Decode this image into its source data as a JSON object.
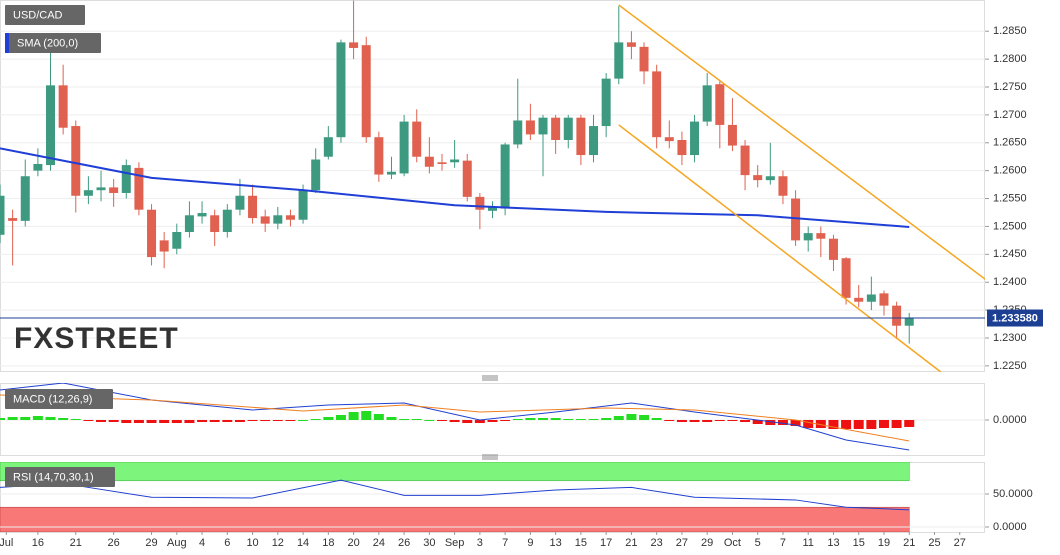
{
  "chart_data": [
    {
      "type": "candlestick",
      "title": "USD/CAD",
      "watermark": "FXSTREET",
      "xlim": [
        0,
        78
      ],
      "xticks": [
        {
          "value": 0.5,
          "label": "Jul"
        },
        {
          "value": 3,
          "label": "16"
        },
        {
          "value": 6,
          "label": "21"
        },
        {
          "value": 9,
          "label": "26"
        },
        {
          "value": 12,
          "label": "29"
        },
        {
          "value": 14,
          "label": "Aug"
        },
        {
          "value": 16,
          "label": "4"
        },
        {
          "value": 18,
          "label": "6"
        },
        {
          "value": 20,
          "label": "10"
        },
        {
          "value": 22,
          "label": "12"
        },
        {
          "value": 24,
          "label": "14"
        },
        {
          "value": 26,
          "label": "18"
        },
        {
          "value": 28,
          "label": "20"
        },
        {
          "value": 30,
          "label": "24"
        },
        {
          "value": 32,
          "label": "26"
        },
        {
          "value": 34,
          "label": "30"
        },
        {
          "value": 36,
          "label": "Sep"
        },
        {
          "value": 38,
          "label": "3"
        },
        {
          "value": 40,
          "label": "7"
        },
        {
          "value": 42,
          "label": "9"
        },
        {
          "value": 44,
          "label": "13"
        },
        {
          "value": 46,
          "label": "15"
        },
        {
          "value": 48,
          "label": "17"
        },
        {
          "value": 50,
          "label": "21"
        },
        {
          "value": 52,
          "label": "23"
        },
        {
          "value": 54,
          "label": "27"
        },
        {
          "value": 56,
          "label": "29"
        },
        {
          "value": 58,
          "label": "Oct"
        },
        {
          "value": 60,
          "label": "5"
        },
        {
          "value": 62,
          "label": "7"
        },
        {
          "value": 64,
          "label": "11"
        },
        {
          "value": 66,
          "label": "13"
        },
        {
          "value": 68,
          "label": "15"
        },
        {
          "value": 70,
          "label": "19"
        },
        {
          "value": 72,
          "label": "21"
        },
        {
          "value": 74,
          "label": "25"
        },
        {
          "value": 76,
          "label": "27"
        }
      ],
      "ylim": [
        1.2239,
        1.2906
      ],
      "yticks": [
        {
          "value": 1.225,
          "label": "1.2250"
        },
        {
          "value": 1.23,
          "label": "1.2300"
        },
        {
          "value": 1.235,
          "label": "1.2350"
        },
        {
          "value": 1.24,
          "label": "1.2400"
        },
        {
          "value": 1.245,
          "label": "1.2450"
        },
        {
          "value": 1.25,
          "label": "1.2500"
        },
        {
          "value": 1.255,
          "label": "1.2550"
        },
        {
          "value": 1.26,
          "label": "1.2600"
        },
        {
          "value": 1.265,
          "label": "1.2650"
        },
        {
          "value": 1.27,
          "label": "1.2700"
        },
        {
          "value": 1.275,
          "label": "1.2750"
        },
        {
          "value": 1.28,
          "label": "1.2800"
        },
        {
          "value": 1.285,
          "label": "1.2850"
        }
      ],
      "grid": true,
      "up_color": "#3d9a80",
      "down_color": "#e0614f",
      "open": [
        1.2485,
        1.2515,
        1.251,
        1.26,
        1.261,
        1.2753,
        1.268,
        1.2555,
        1.2565,
        1.257,
        1.256,
        1.2605,
        1.253,
        1.2475,
        1.246,
        1.249,
        1.2518,
        1.252,
        1.249,
        1.253,
        1.2555,
        1.2518,
        1.2505,
        1.252,
        1.2512,
        1.2565,
        1.2625,
        1.266,
        1.283,
        1.2825,
        1.266,
        1.2593,
        1.2595,
        1.2688,
        1.2625,
        1.2615,
        1.2615,
        1.2618,
        1.2553,
        1.2528,
        1.2532,
        1.2647,
        1.269,
        1.2665,
        1.2695,
        1.2655,
        1.2695,
        1.2628,
        1.268,
        1.2765,
        1.283,
        1.2822,
        1.2778,
        1.266,
        1.2655,
        1.2628,
        1.2688,
        1.2755,
        1.2682,
        1.2645,
        1.2592,
        1.2583,
        1.259,
        1.255,
        1.2475,
        1.2488,
        1.2478,
        1.2443,
        1.2372,
        1.2365,
        1.238,
        1.2358,
        1.2322
      ],
      "high": [
        1.2575,
        1.253,
        1.262,
        1.264,
        1.282,
        1.279,
        1.269,
        1.259,
        1.26,
        1.2585,
        1.262,
        1.2615,
        1.254,
        1.249,
        1.2505,
        1.2545,
        1.2545,
        1.253,
        1.254,
        1.2585,
        1.2575,
        1.253,
        1.2535,
        1.253,
        1.2575,
        1.264,
        1.268,
        1.2835,
        1.2905,
        1.284,
        1.267,
        1.2625,
        1.27,
        1.271,
        1.266,
        1.263,
        1.2655,
        1.263,
        1.256,
        1.2545,
        1.265,
        1.2765,
        1.272,
        1.27,
        1.27,
        1.27,
        1.27,
        1.27,
        1.2775,
        1.2895,
        1.285,
        1.283,
        1.279,
        1.269,
        1.267,
        1.27,
        1.2775,
        1.276,
        1.273,
        1.2655,
        1.261,
        1.265,
        1.26,
        1.2565,
        1.25,
        1.25,
        1.2485,
        1.2445,
        1.2395,
        1.241,
        1.2385,
        1.2365,
        1.2345
      ],
      "low": [
        1.247,
        1.243,
        1.25,
        1.259,
        1.26,
        1.2665,
        1.2525,
        1.254,
        1.2545,
        1.2535,
        1.255,
        1.252,
        1.243,
        1.2425,
        1.245,
        1.248,
        1.2505,
        1.2465,
        1.248,
        1.252,
        1.2505,
        1.249,
        1.2495,
        1.25,
        1.2505,
        1.256,
        1.262,
        1.265,
        1.28,
        1.265,
        1.258,
        1.2585,
        1.259,
        1.2615,
        1.2595,
        1.26,
        1.2605,
        1.2545,
        1.2495,
        1.2515,
        1.252,
        1.264,
        1.2655,
        1.259,
        1.263,
        1.264,
        1.261,
        1.2615,
        1.266,
        1.2755,
        1.28,
        1.2755,
        1.264,
        1.264,
        1.261,
        1.2615,
        1.268,
        1.264,
        1.2635,
        1.2565,
        1.257,
        1.2575,
        1.254,
        1.2465,
        1.2455,
        1.2445,
        1.242,
        1.236,
        1.2355,
        1.235,
        1.234,
        1.2298,
        1.229
      ],
      "close": [
        1.2555,
        1.251,
        1.259,
        1.2612,
        1.2753,
        1.2677,
        1.2555,
        1.2565,
        1.257,
        1.256,
        1.261,
        1.253,
        1.2445,
        1.2455,
        1.249,
        1.252,
        1.2524,
        1.249,
        1.253,
        1.2555,
        1.2515,
        1.2505,
        1.252,
        1.2512,
        1.2565,
        1.262,
        1.266,
        1.283,
        1.282,
        1.266,
        1.2593,
        1.2598,
        1.2688,
        1.2625,
        1.2607,
        1.2612,
        1.262,
        1.2553,
        1.253,
        1.2535,
        1.2647,
        1.269,
        1.2665,
        1.2695,
        1.2655,
        1.2695,
        1.2628,
        1.268,
        1.2765,
        1.283,
        1.2822,
        1.2778,
        1.266,
        1.2653,
        1.2628,
        1.2688,
        1.2753,
        1.2682,
        1.2645,
        1.2592,
        1.2583,
        1.259,
        1.2555,
        1.2475,
        1.2488,
        1.2478,
        1.244,
        1.2372,
        1.2365,
        1.2378,
        1.2358,
        1.2322,
        1.2336
      ],
      "series": [
        {
          "name": "SMA (200,0)",
          "color": "#1f3fd6",
          "x": [
            0,
            12,
            24,
            36,
            48,
            60,
            72
          ],
          "values": [
            1.264,
            1.2587,
            1.2565,
            1.2538,
            1.2526,
            1.252,
            1.2499
          ]
        }
      ],
      "channel": {
        "color": "#f5a623",
        "lines": [
          {
            "x": [
              49,
              78.1
            ],
            "values": [
              1.2897,
              1.2404
            ]
          },
          {
            "x": [
              49,
              74.5
            ],
            "values": [
              1.2682,
              1.2239
            ]
          }
        ]
      },
      "last_price": {
        "value": 1.23358,
        "label": "1.233580",
        "color": "#1c3f94"
      }
    },
    {
      "type": "macd",
      "title": "MACD (12,26,9)",
      "ylim": [
        -0.0035,
        0.0037
      ],
      "yticks": [
        {
          "value": 0,
          "label": "0.0000"
        }
      ],
      "histogram": {
        "up_color": "#22dd22",
        "down_color": "#ee1111",
        "values": [
          0.0002,
          0.0003,
          0.0003,
          0.0004,
          0.0003,
          0.0002,
          0.0001,
          -0.0001,
          -0.0002,
          -0.0002,
          -0.0003,
          -0.0003,
          -0.0003,
          -0.0003,
          -0.0003,
          -0.0003,
          -0.0002,
          -0.0002,
          -0.0002,
          -0.0002,
          -0.0001,
          -0.0001,
          -0.0001,
          -0.0001,
          0,
          0.0001,
          0.0003,
          0.0005,
          0.0008,
          0.0009,
          0.0006,
          0.0003,
          0.0001,
          0.0001,
          0,
          -0.0001,
          -0.0002,
          -0.0003,
          -0.0003,
          -0.0002,
          -0.0001,
          0.0001,
          0.0002,
          0.0002,
          0.0002,
          0.0001,
          0.0001,
          0.0001,
          0.0002,
          0.0004,
          0.0006,
          0.0005,
          0.0002,
          -0.0001,
          -0.0002,
          -0.0002,
          -0.0002,
          -0.0001,
          -0.0001,
          -0.0002,
          -0.0004,
          -0.0005,
          -0.0005,
          -0.0006,
          -0.0008,
          -0.0008,
          -0.0009,
          -0.0009,
          -0.0009,
          -0.0009,
          -0.0008,
          -0.0008,
          -0.0007
        ]
      },
      "macd": {
        "color": "#2040d0",
        "x": [
          0,
          5,
          12,
          20,
          26,
          32,
          38,
          44,
          50,
          55,
          63,
          67,
          72
        ],
        "values": [
          0.003,
          0.0037,
          0.002,
          0.001,
          0.0015,
          0.0017,
          0.0,
          0.0008,
          0.0017,
          0.0008,
          -0.0005,
          -0.002,
          -0.003
        ]
      },
      "signal": {
        "color": "#f08020",
        "x": [
          0,
          12,
          24,
          32,
          38,
          48,
          55,
          63,
          72
        ],
        "values": [
          0.0025,
          0.002,
          0.0009,
          0.0015,
          0.0008,
          0.0012,
          0.001,
          0.0,
          -0.0021
        ]
      }
    },
    {
      "type": "rsi",
      "title": "RSI (14,70,30,1)",
      "ylim": [
        -7.6,
        98.5
      ],
      "yticks": [
        {
          "value": 50,
          "label": "50.0000"
        },
        {
          "value": 0,
          "label": "0.0000"
        }
      ],
      "overbought": 70,
      "oversold": 30,
      "overbought_color": "#7df57d",
      "oversold_color": "#f87878",
      "series": {
        "color": "#2040d0",
        "x": [
          0,
          5,
          12,
          20,
          27,
          32,
          38,
          44,
          50,
          55,
          63,
          67,
          72
        ],
        "values": [
          60,
          66,
          45,
          44,
          71,
          48,
          48,
          56,
          60,
          45,
          41,
          30,
          26
        ]
      }
    }
  ]
}
